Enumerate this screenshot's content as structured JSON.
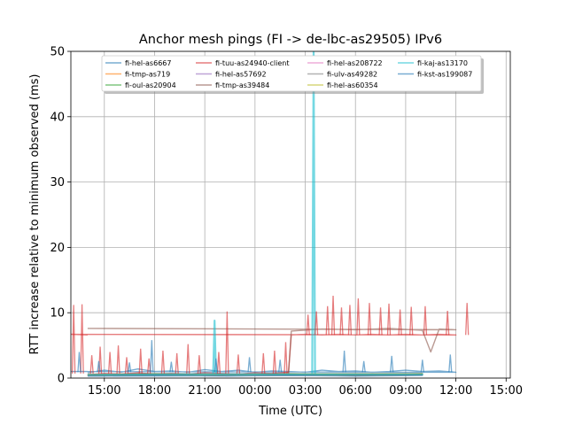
{
  "chart_data": {
    "type": "line",
    "title": "Anchor mesh pings (FI -> de-lbc-as29505) IPv6",
    "xlabel": "Time (UTC)",
    "ylabel": "RTT increase relative to minimum observed (ms)",
    "ylim": [
      0,
      50
    ],
    "xlim": [
      "13:00",
      "15:15 (+1 day)"
    ],
    "x_ticks": [
      "15:00",
      "18:00",
      "21:00",
      "00:00",
      "03:00",
      "06:00",
      "09:00",
      "12:00",
      "15:00"
    ],
    "y_ticks": [
      "0",
      "10",
      "20",
      "30",
      "40",
      "50"
    ],
    "grid": true,
    "legend_position": "upper center",
    "series": [
      {
        "name": "fi-hel-as6667",
        "color": "#1f77b4",
        "x": [
          "14:00",
          "15:00",
          "16:00",
          "17:00",
          "18:00",
          "19:00",
          "20:00",
          "21:00",
          "22:00",
          "23:00",
          "00:00",
          "01:00",
          "02:00",
          "03:00",
          "04:00",
          "05:00",
          "06:00",
          "07:00",
          "08:00",
          "09:00",
          "10:00",
          "11:00",
          "12:00",
          "13:00",
          "14:00"
        ],
        "y": [
          0.8,
          1.2,
          0.9,
          1.4,
          1.0,
          1.1,
          0.9,
          1.3,
          1.0,
          1.2,
          0.9,
          1.1,
          1.0,
          0.9,
          1.2,
          1.0,
          1.1,
          0.9,
          1.0,
          1.2,
          1.0,
          1.1,
          0.9,
          1.0,
          1.0
        ]
      },
      {
        "name": "fi-tmp-as719",
        "color": "#ff7f0e",
        "x": [
          "14:00",
          "18:00",
          "22:00",
          "02:00",
          "06:00",
          "10:00",
          "14:00"
        ],
        "y": [
          0.6,
          0.7,
          0.6,
          0.7,
          0.6,
          0.7,
          0.6
        ]
      },
      {
        "name": "fi-oul-as20904",
        "color": "#2ca02c",
        "x": [
          "14:00",
          "18:00",
          "22:00",
          "02:00",
          "06:00",
          "10:00",
          "14:00"
        ],
        "y": [
          0.5,
          0.6,
          0.5,
          0.6,
          0.5,
          0.6,
          0.5
        ]
      },
      {
        "name": "fi-tuu-as24940-client",
        "color": "#d62728",
        "x": [
          "14:00",
          "15:00",
          "16:00",
          "17:00",
          "18:00",
          "19:00",
          "20:00",
          "21:00",
          "22:00",
          "23:00",
          "00:00",
          "01:00",
          "02:00",
          "02:10",
          "03:00",
          "04:00",
          "05:00",
          "06:00",
          "07:00",
          "08:00",
          "09:00",
          "10:00",
          "11:00",
          "12:00",
          "13:00",
          "14:00"
        ],
        "y": [
          0.5,
          0.7,
          0.6,
          0.8,
          0.6,
          0.7,
          0.6,
          0.8,
          0.7,
          0.6,
          0.8,
          0.7,
          0.9,
          6.6,
          6.7,
          6.6,
          6.7,
          6.6,
          6.7,
          6.6,
          6.7,
          6.6,
          6.7,
          6.6,
          6.7,
          6.6
        ]
      },
      {
        "name": "fi-hel-as57692",
        "color": "#9467bd",
        "x": [
          "14:00",
          "18:00",
          "22:00",
          "02:00",
          "06:00",
          "10:00",
          "14:00"
        ],
        "y": [
          0.4,
          0.5,
          0.4,
          0.5,
          0.4,
          0.5,
          0.4
        ]
      },
      {
        "name": "fi-tmp-as39484",
        "color": "#8c564b",
        "x": [
          "14:00",
          "18:00",
          "22:00",
          "02:00",
          "02:10",
          "04:00",
          "06:00",
          "08:00",
          "10:00",
          "10:30",
          "11:00",
          "12:00",
          "14:00"
        ],
        "y": [
          0.4,
          0.5,
          0.4,
          0.5,
          7.2,
          7.5,
          7.4,
          7.6,
          7.3,
          4.0,
          7.5,
          7.4,
          7.6
        ]
      },
      {
        "name": "fi-hel-as208722",
        "color": "#e377c2",
        "x": [
          "14:00",
          "18:00",
          "22:00",
          "02:00",
          "06:00",
          "10:00",
          "14:00"
        ],
        "y": [
          0.4,
          0.5,
          0.4,
          0.5,
          0.4,
          0.5,
          0.4
        ]
      },
      {
        "name": "fi-ulv-as49282",
        "color": "#7f7f7f",
        "x": [
          "14:00",
          "18:00",
          "22:00",
          "02:00",
          "06:00",
          "10:00",
          "14:00"
        ],
        "y": [
          0.5,
          0.6,
          0.5,
          0.6,
          0.5,
          0.6,
          0.5
        ]
      },
      {
        "name": "fi-hel-as60354",
        "color": "#bcbd22",
        "x": [
          "14:00",
          "18:00",
          "22:00",
          "02:00",
          "06:00",
          "10:00",
          "14:00"
        ],
        "y": [
          0.4,
          0.5,
          0.4,
          0.5,
          0.4,
          0.5,
          0.4
        ]
      },
      {
        "name": "fi-kaj-as13170",
        "color": "#17becf",
        "x": [
          "14:00",
          "18:00",
          "21:30",
          "21:35",
          "21:40",
          "02:00",
          "03:25",
          "03:30",
          "03:35",
          "06:00",
          "10:00",
          "14:00"
        ],
        "y": [
          0.5,
          0.6,
          0.6,
          8.8,
          0.6,
          0.6,
          0.6,
          50,
          0.6,
          0.6,
          0.6,
          0.5
        ]
      },
      {
        "name": "fi-kst-as199087",
        "color": "#1f77b4",
        "x": [
          "14:00",
          "18:00",
          "22:00",
          "02:00",
          "06:00",
          "10:00",
          "14:00"
        ],
        "y": [
          0.3,
          0.4,
          0.3,
          0.4,
          0.3,
          0.4,
          0.3
        ]
      }
    ],
    "spikes": [
      {
        "series": "fi-tuu-as24940-client",
        "x": [
          "14:15",
          "14:45",
          "15:20",
          "15:50",
          "16:20",
          "17:10",
          "17:40",
          "18:30",
          "19:20",
          "20:00",
          "20:40",
          "21:50",
          "22:20",
          "23:00",
          "00:30",
          "01:10",
          "01:50",
          "03:10",
          "03:40",
          "04:20",
          "04:40",
          "05:10",
          "05:40",
          "06:10",
          "06:50",
          "07:30",
          "08:00",
          "08:40",
          "09:20",
          "10:10",
          "11:30",
          "12:40",
          "13:10",
          "13:40"
        ],
        "y": [
          3.5,
          4.8,
          4.0,
          5.0,
          3.2,
          4.5,
          3.0,
          4.2,
          3.8,
          5.2,
          3.5,
          4.0,
          10.2,
          3.6,
          3.8,
          4.2,
          5.5,
          9.7,
          10.2,
          11.0,
          12.6,
          10.8,
          11.2,
          12.2,
          11.5,
          10.8,
          11.4,
          10.5,
          10.9,
          11.0,
          10.3,
          11.5,
          11.2,
          11.3
        ]
      },
      {
        "series": "fi-hel-as6667",
        "x": [
          "14:40",
          "16:30",
          "17:50",
          "19:00",
          "21:40",
          "23:40",
          "01:30",
          "05:20",
          "06:30",
          "08:10",
          "10:00",
          "11:40",
          "13:30"
        ],
        "y": [
          2.6,
          2.4,
          5.8,
          2.5,
          3.0,
          3.2,
          2.8,
          4.2,
          2.6,
          3.4,
          2.8,
          3.6,
          4.0
        ]
      }
    ]
  }
}
